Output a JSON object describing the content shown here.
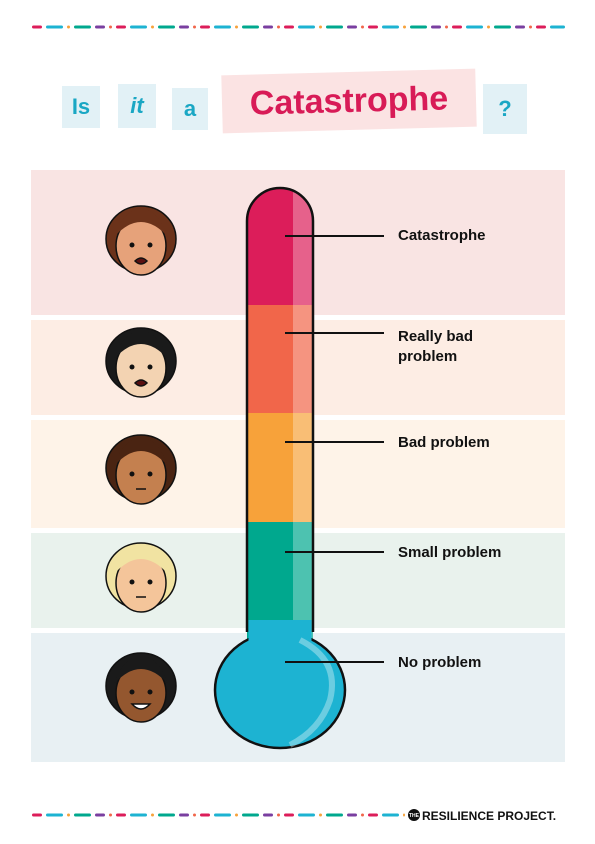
{
  "title": {
    "words": [
      "Is",
      "it",
      "a",
      "Catastrophe",
      "?"
    ]
  },
  "levels": [
    {
      "label": "Catastrophe"
    },
    {
      "label": "Really bad problem"
    },
    {
      "label": "Bad problem"
    },
    {
      "label": "Small problem"
    },
    {
      "label": "No problem"
    }
  ],
  "footer": {
    "brand_small": "THE",
    "brand": "RESILIENCE PROJECT."
  }
}
